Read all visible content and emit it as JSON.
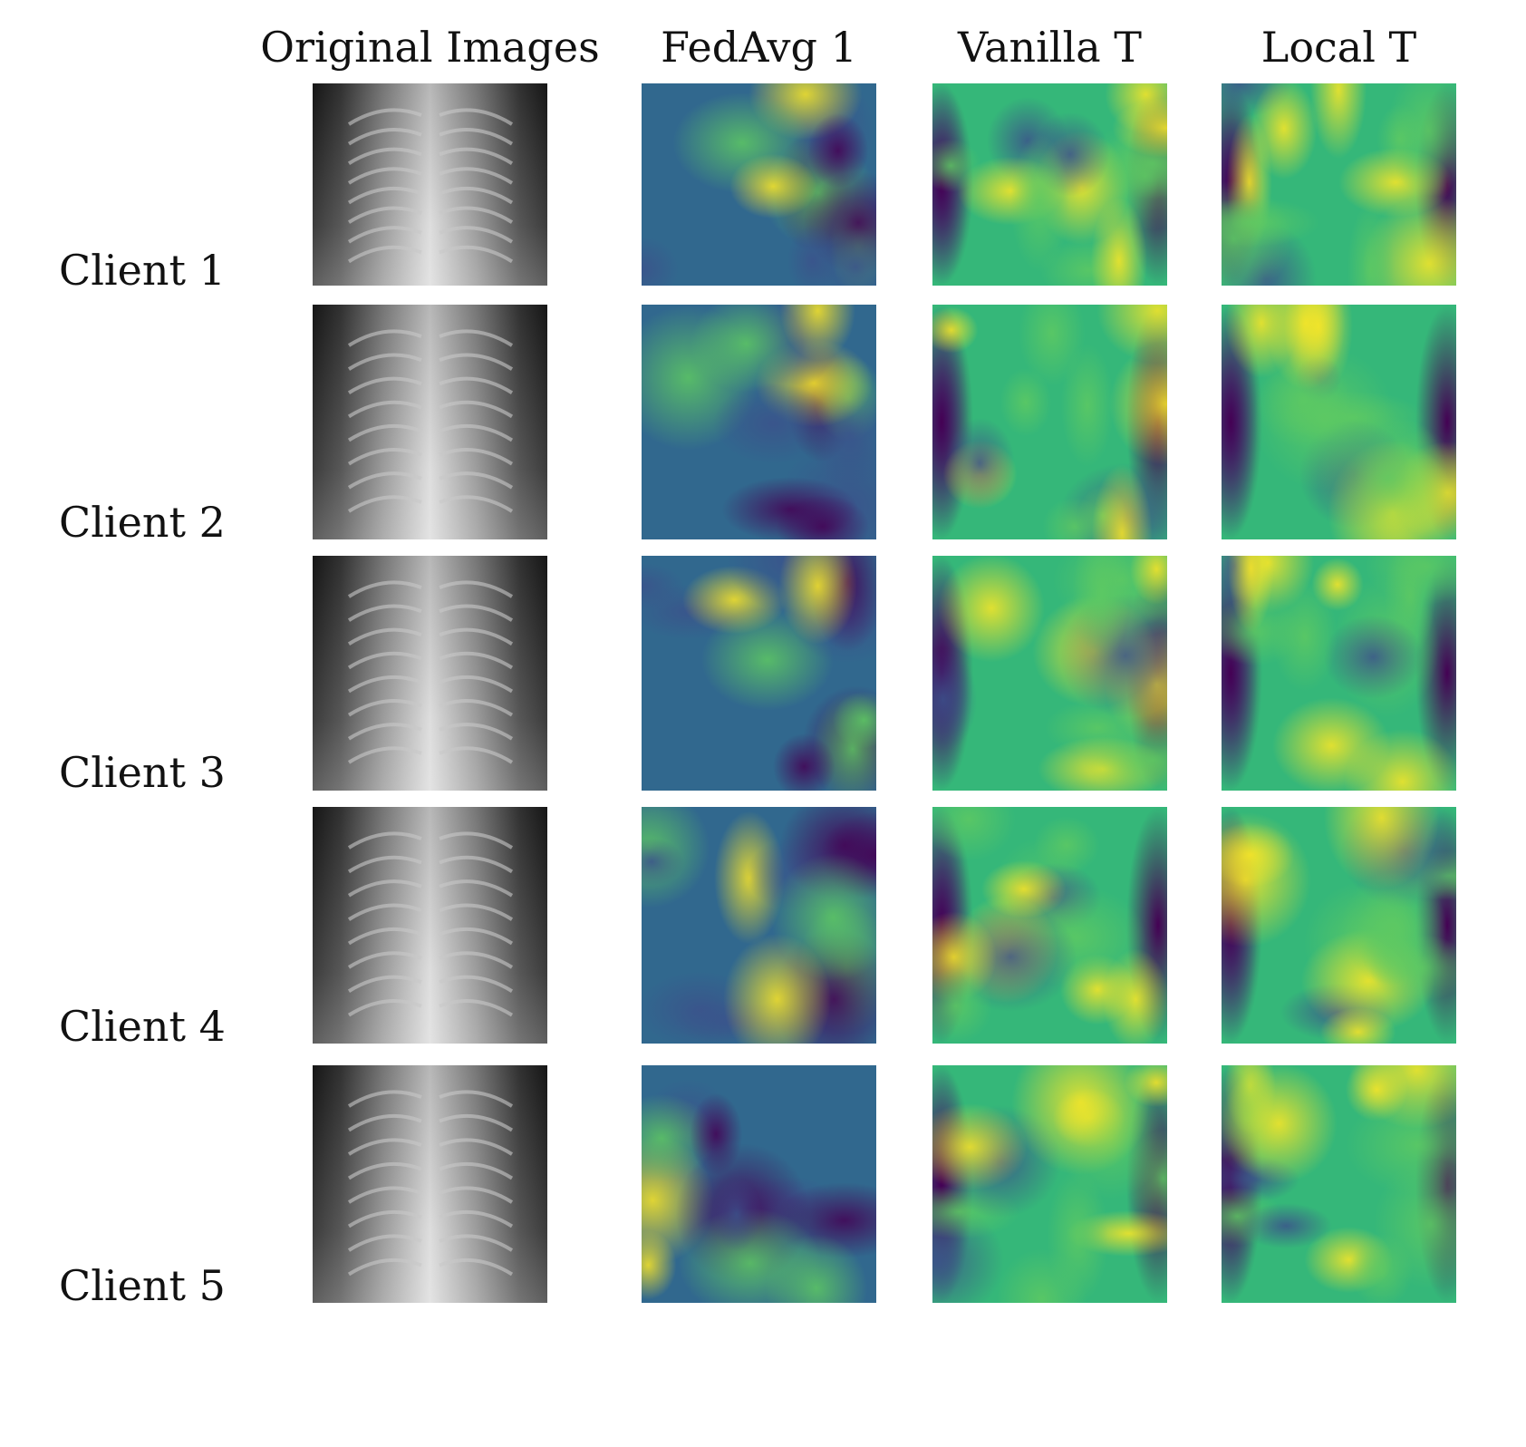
{
  "figure": {
    "columns": [
      "Original Images",
      "FedAvg 1",
      "Vanilla T",
      "Local T"
    ],
    "rows": [
      "Client 1",
      "Client 2",
      "Client 3",
      "Client 4",
      "Client 5"
    ]
  }
}
